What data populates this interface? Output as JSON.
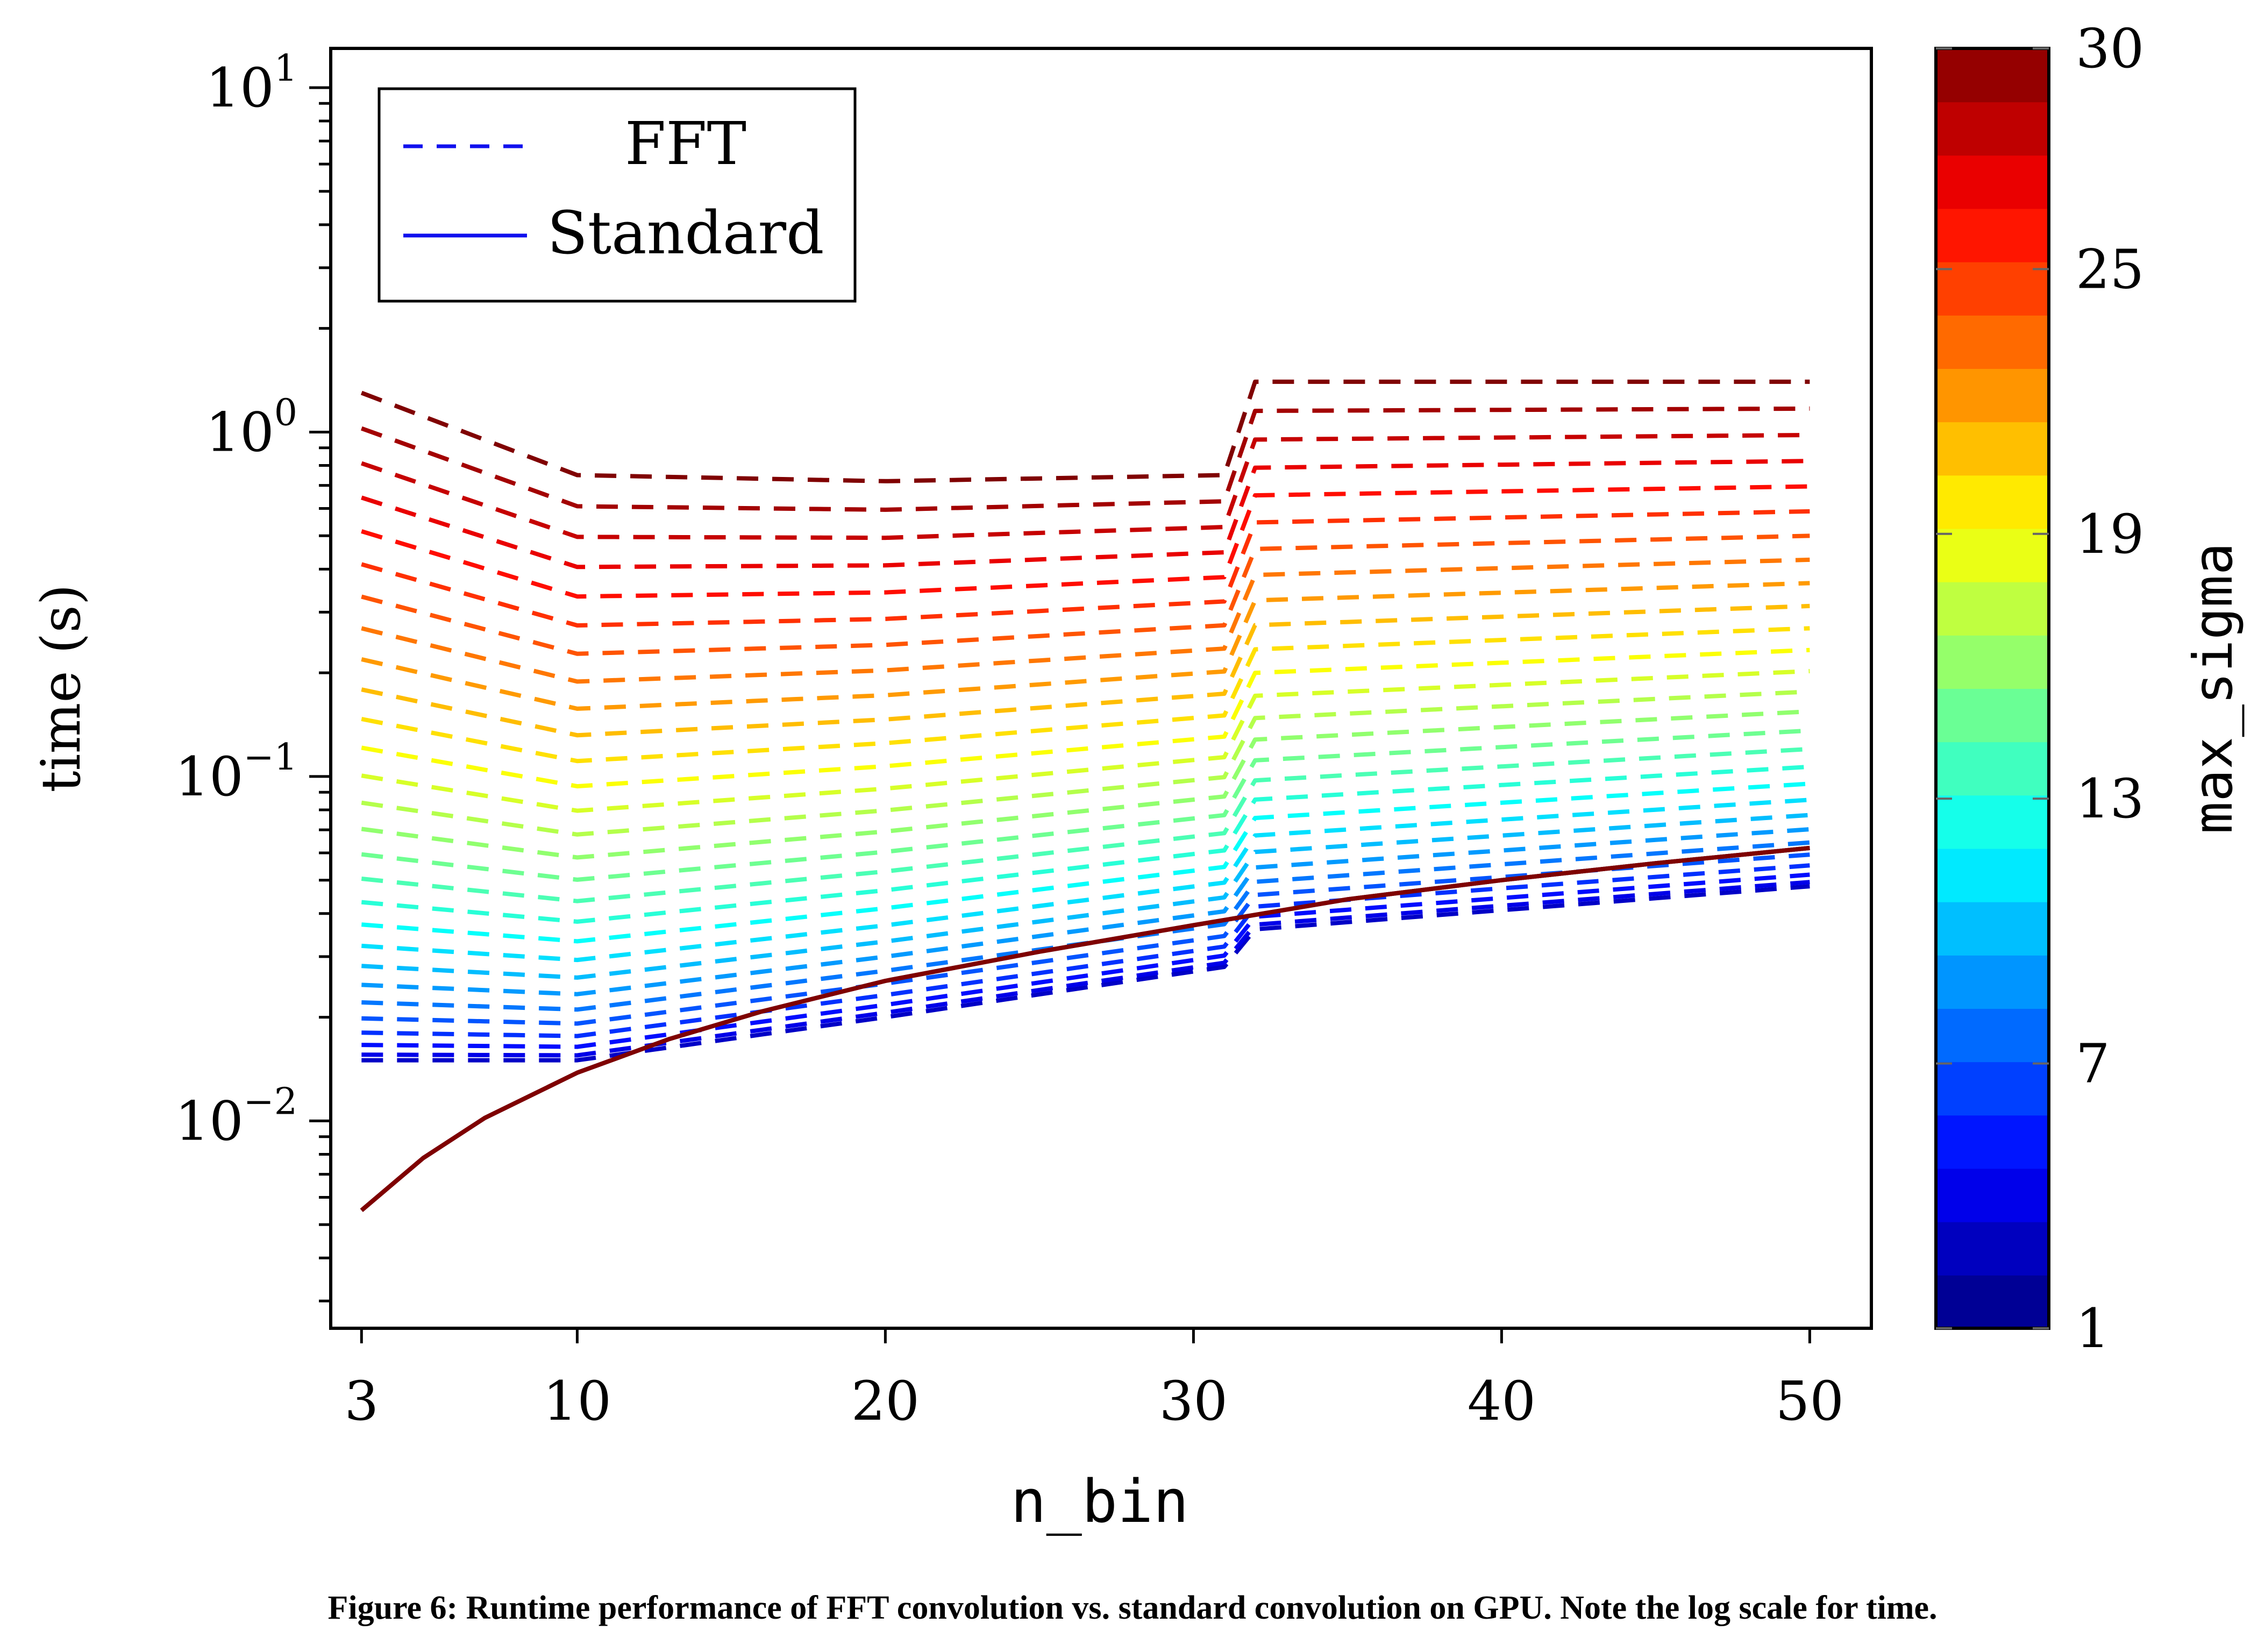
{
  "caption": "Figure 6: Runtime performance of FFT convolution vs. standard convolution on GPU. Note the log scale for time.",
  "chart_data": {
    "type": "line",
    "xlabel": "n_bin",
    "ylabel": "time (s)",
    "yscale": "log",
    "xlim": [
      2,
      52
    ],
    "ylim": [
      0.0025,
      13
    ],
    "xticks": [
      3,
      10,
      20,
      30,
      40,
      50
    ],
    "yticks": [
      {
        "value": 0.01,
        "base": "10",
        "exp": "−2"
      },
      {
        "value": 0.1,
        "base": "10",
        "exp": "−1"
      },
      {
        "value": 1,
        "base": "10",
        "exp": "0"
      },
      {
        "value": 10,
        "base": "10",
        "exp": "1"
      }
    ],
    "legend": {
      "position": "top-left",
      "entries": [
        {
          "label": "FFT",
          "style": "dashed",
          "color": "#1010ee"
        },
        {
          "label": "Standard",
          "style": "solid",
          "color": "#1010ee"
        }
      ]
    },
    "colorbar": {
      "label": "max_sigma",
      "min": 1,
      "max": 30,
      "ticks": [
        1,
        7,
        13,
        19,
        25,
        30
      ],
      "colormap": "jet",
      "levels": 24
    },
    "fft_series_model": {
      "sigma_values": [
        3,
        4,
        5,
        6,
        7,
        8,
        9,
        10,
        11,
        12,
        13,
        14,
        15,
        16,
        17,
        18,
        19,
        20,
        21,
        22,
        23,
        24,
        25,
        26,
        27,
        28,
        29,
        30
      ],
      "x": [
        3,
        4,
        5,
        6,
        7,
        8,
        9,
        10,
        11,
        12,
        13,
        14,
        15,
        16,
        17,
        18,
        19,
        20,
        21,
        22,
        23,
        24,
        25,
        26,
        27,
        28,
        29,
        30,
        31,
        32,
        33,
        34,
        35,
        36,
        37,
        38,
        39,
        40,
        41,
        42,
        43,
        44,
        45,
        46,
        47,
        48,
        49,
        50
      ],
      "top_series_values_at_x": {
        "3": 1.3,
        "10": 0.75,
        "20": 0.72,
        "31": 0.75,
        "32": 1.4,
        "50": 1.4
      },
      "lowest_series_values_at_x": {
        "3": 0.015,
        "10": 0.015,
        "20": 0.02,
        "31": 0.028,
        "32": 0.036,
        "50": 0.048
      }
    },
    "standard_series": {
      "x": [
        3,
        5,
        7,
        10,
        13,
        16,
        20,
        25,
        30,
        35,
        40,
        45,
        50
      ],
      "values": [
        0.0055,
        0.0078,
        0.0102,
        0.0138,
        0.0173,
        0.0208,
        0.0255,
        0.031,
        0.037,
        0.044,
        0.05,
        0.056,
        0.062
      ]
    }
  }
}
